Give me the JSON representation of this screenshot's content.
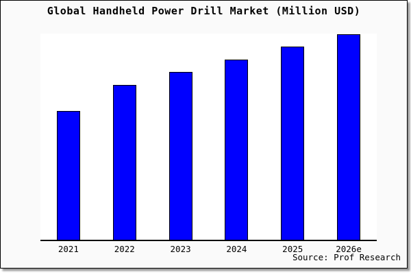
{
  "title": "Global Handheld Power Drill Market (Million USD)",
  "source": "Source: Prof Research",
  "colors": {
    "bar_fill": "#0000ff",
    "bar_border": "#000000",
    "plot_background": "#ffffff",
    "figure_background": "#fafafa",
    "frame_border": "#000000",
    "shadow": "#999999",
    "text": "#000000"
  },
  "chart_data": {
    "type": "bar",
    "title": "Global Handheld Power Drill Market (Million USD)",
    "categories": [
      "2021",
      "2022",
      "2023",
      "2024",
      "2025",
      "2026e"
    ],
    "values": [
      188,
      226,
      245,
      263,
      282,
      300
    ],
    "xlabel": "",
    "ylabel": "",
    "ylim": [
      0,
      301
    ],
    "grid": false,
    "legend": false,
    "y_axis_shown": false,
    "note": "No y-axis scale or data labels are shown in the image; values are relative bar heights (pixels) measured against the 301px plot area.",
    "source_annotation": "Source: Prof Research"
  }
}
